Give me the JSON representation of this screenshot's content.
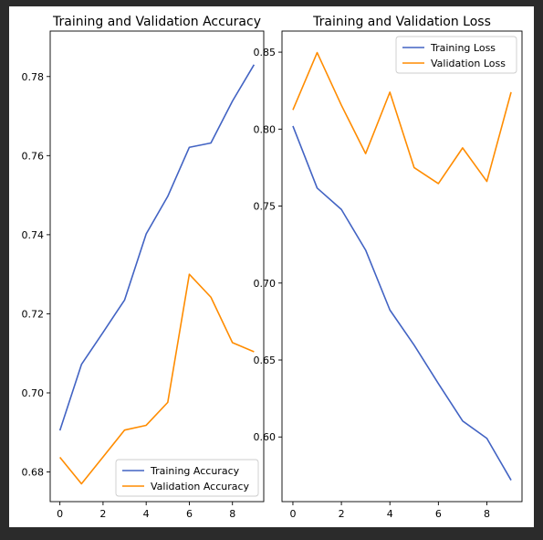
{
  "chart_data": [
    {
      "type": "line",
      "title": "Training and Validation Accuracy",
      "xlabel": "",
      "ylabel": "",
      "xlim": [
        -0.45,
        9.45
      ],
      "ylim": [
        0.6725,
        0.7915
      ],
      "x_ticks": [
        0,
        2,
        4,
        6,
        8
      ],
      "y_ticks": [
        0.68,
        0.7,
        0.72,
        0.74,
        0.76,
        0.78
      ],
      "x_tick_labels": [
        "0",
        "2",
        "4",
        "6",
        "8"
      ],
      "y_tick_labels": [
        "0.68",
        "0.70",
        "0.72",
        "0.74",
        "0.76",
        "0.78"
      ],
      "grid": false,
      "legend_position": "lower-right",
      "x": [
        0,
        1,
        2,
        3,
        4,
        5,
        6,
        7,
        8,
        9
      ],
      "series": [
        {
          "name": "Training Accuracy",
          "color": "#4263c3",
          "values": [
            0.6905,
            0.7072,
            0.7153,
            0.7235,
            0.7402,
            0.7497,
            0.7621,
            0.7632,
            0.7738,
            0.783
          ]
        },
        {
          "name": "Validation Accuracy",
          "color": "#ff8c00",
          "values": [
            0.6837,
            0.677,
            0.6838,
            0.6906,
            0.6918,
            0.6976,
            0.73,
            0.7242,
            0.7127,
            0.7104
          ]
        }
      ]
    },
    {
      "type": "line",
      "title": "Training and Validation Loss",
      "xlabel": "",
      "ylabel": "",
      "xlim": [
        -0.45,
        9.45
      ],
      "ylim": [
        0.558,
        0.8637
      ],
      "x_ticks": [
        0,
        2,
        4,
        6,
        8
      ],
      "y_ticks": [
        0.6,
        0.65,
        0.7,
        0.75,
        0.8,
        0.85
      ],
      "x_tick_labels": [
        "0",
        "2",
        "4",
        "6",
        "8"
      ],
      "y_tick_labels": [
        "0.60",
        "0.65",
        "0.70",
        "0.75",
        "0.80",
        "0.85"
      ],
      "grid": false,
      "legend_position": "upper-right",
      "x": [
        0,
        1,
        2,
        3,
        4,
        5,
        6,
        7,
        8,
        9
      ],
      "series": [
        {
          "name": "Training Loss",
          "color": "#4263c3",
          "values": [
            0.802,
            0.7617,
            0.7478,
            0.7214,
            0.6825,
            0.6597,
            0.6347,
            0.6104,
            0.5991,
            0.5719
          ]
        },
        {
          "name": "Validation Loss",
          "color": "#ff8c00",
          "values": [
            0.8125,
            0.8497,
            0.8155,
            0.7841,
            0.824,
            0.775,
            0.7646,
            0.7878,
            0.766,
            0.824
          ]
        }
      ]
    }
  ]
}
